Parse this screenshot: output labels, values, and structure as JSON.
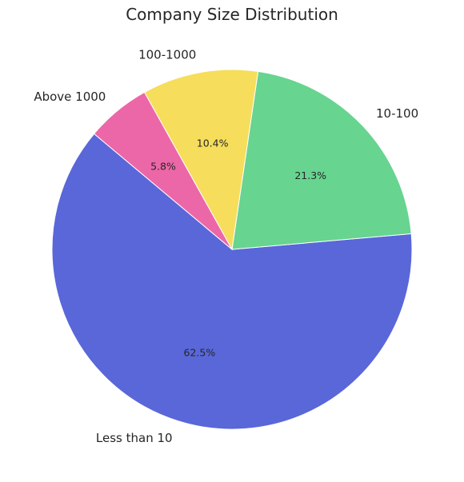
{
  "chart_data": {
    "type": "pie",
    "title": "Company Size Distribution",
    "start_angle_deg": 140,
    "direction": "counterclockwise",
    "slices": [
      {
        "label": "Less than 10",
        "value": 62.5,
        "pct_label": "62.5%",
        "color": "#5967d9"
      },
      {
        "label": "10-100",
        "value": 21.3,
        "pct_label": "21.3%",
        "color": "#67d490"
      },
      {
        "label": "100-1000",
        "value": 10.4,
        "pct_label": "10.4%",
        "color": "#f6dd5b"
      },
      {
        "label": "Above 1000",
        "value": 5.8,
        "pct_label": "5.8%",
        "color": "#ec67a8"
      }
    ],
    "legend": "none",
    "grid": false
  }
}
